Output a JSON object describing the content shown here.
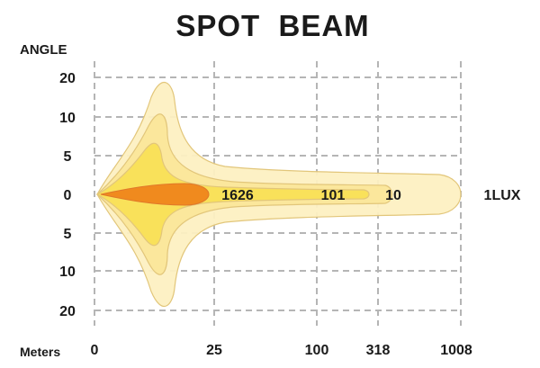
{
  "title": "SPOT  BEAM",
  "y_axis_title": "ANGLE",
  "x_axis_title": "Meters",
  "y_ticks": [
    "20",
    "10",
    "5",
    "0",
    "5",
    "10",
    "20"
  ],
  "x_ticks": [
    "0",
    "25",
    "100",
    "318",
    "1008"
  ],
  "lux_labels": [
    "1626",
    "101",
    "10",
    "1LUX"
  ],
  "colors": {
    "outer_zone": "#FDF0C2",
    "zone_2": "#FBE79C",
    "zone_3": "#F9E15A",
    "core": "#F08A1E",
    "outline": "#E2C67A",
    "grid": "#B5B5B5",
    "text": "#1A1A1A"
  }
}
